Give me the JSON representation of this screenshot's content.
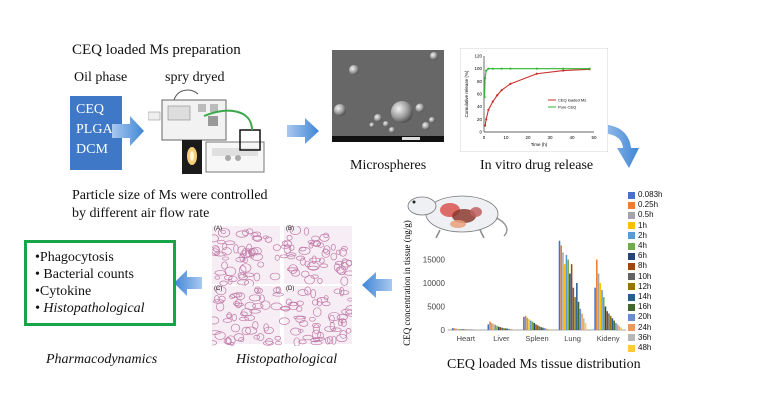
{
  "title": "CEQ loaded Ms preparation",
  "oil_phase_label": "Oil phase",
  "spray_label": "spry dryed",
  "oil_phase_items": [
    "CEQ",
    "PLGA",
    "DCM"
  ],
  "microspheres_label": "Microspheres",
  "in_vitro_label": "In vitro drug release",
  "particle_text_1": "Particle size of Ms were controlled",
  "particle_text_2": "by different air flow rate",
  "pd_items": [
    "•Phagocytosis",
    "• Bacterial counts",
    "•Cytokine",
    "• Histopathological"
  ],
  "pharmacodynamics_label": "Pharmacodynamics",
  "histopathological_label": "Histopathological",
  "tissue_label": "CEQ loaded Ms tissue distribution",
  "histo_panels": [
    "(A)",
    "(B)",
    "(C)",
    "(D)"
  ],
  "release_chart": {
    "type": "line",
    "xlabel": "Time (h)",
    "ylabel": "Cumulative release (%)",
    "xlim": [
      0,
      50
    ],
    "ylim": [
      0,
      120
    ],
    "xticks": [
      "0",
      "10",
      "20",
      "30",
      "40",
      "50"
    ],
    "yticks": [
      "0",
      "20",
      "40",
      "60",
      "80",
      "100",
      "120"
    ],
    "series": [
      {
        "name": "CEQ loaded Ms",
        "color": "#c9302c",
        "x": [
          0.5,
          1,
          2,
          4,
          6,
          8,
          12,
          24,
          36,
          48
        ],
        "y": [
          10,
          20,
          35,
          48,
          58,
          66,
          76,
          92,
          97,
          99
        ]
      },
      {
        "name": "Pure CEQ",
        "color": "#2eb82e",
        "x": [
          0.25,
          0.5,
          1,
          2,
          4,
          8,
          12,
          24,
          36,
          48
        ],
        "y": [
          55,
          85,
          97,
          100,
          100,
          100,
          100,
          100,
          100,
          100
        ]
      }
    ]
  },
  "chart_data": {
    "type": "bar",
    "ylabel": "CEQ concentration in tissue (ng/g)",
    "ylim": [
      0,
      20000
    ],
    "yticks": [
      "0",
      "5000",
      "10000",
      "15000"
    ],
    "categories": [
      "Heart",
      "Liver",
      "Spleen",
      "Lung",
      "Kideny"
    ],
    "legend_position": "right",
    "series": [
      {
        "name": "0.083h",
        "color": "#4472c4",
        "values": [
          400,
          1200,
          2800,
          19000,
          9000
        ]
      },
      {
        "name": "0.25h",
        "color": "#ed7d31",
        "values": [
          350,
          1800,
          3000,
          18000,
          15000
        ]
      },
      {
        "name": "0.5h",
        "color": "#a5a5a5",
        "values": [
          300,
          1500,
          2600,
          16500,
          12000
        ]
      },
      {
        "name": "1h",
        "color": "#ffc000",
        "values": [
          250,
          1300,
          2300,
          14000,
          10000
        ]
      },
      {
        "name": "2h",
        "color": "#5b9bd5",
        "values": [
          200,
          1100,
          2000,
          16000,
          8500
        ]
      },
      {
        "name": "4h",
        "color": "#70ad47",
        "values": [
          180,
          900,
          1800,
          15000,
          7000
        ]
      },
      {
        "name": "6h",
        "color": "#264478",
        "values": [
          150,
          700,
          1500,
          12000,
          5000
        ]
      },
      {
        "name": "8h",
        "color": "#9e480e",
        "values": [
          120,
          600,
          1200,
          14000,
          4000
        ]
      },
      {
        "name": "10h",
        "color": "#636363",
        "values": [
          100,
          500,
          1000,
          9000,
          3500
        ]
      },
      {
        "name": "12h",
        "color": "#997300",
        "values": [
          90,
          400,
          800,
          7000,
          3000
        ]
      },
      {
        "name": "14h",
        "color": "#255e91",
        "values": [
          80,
          350,
          600,
          10000,
          2500
        ]
      },
      {
        "name": "16h",
        "color": "#43682b",
        "values": [
          70,
          300,
          500,
          6000,
          2000
        ]
      },
      {
        "name": "20h",
        "color": "#698ed0",
        "values": [
          60,
          250,
          400,
          4500,
          1500
        ]
      },
      {
        "name": "24h",
        "color": "#f1975a",
        "values": [
          50,
          200,
          300,
          3500,
          1200
        ]
      },
      {
        "name": "36h",
        "color": "#b7b7b7",
        "values": [
          40,
          150,
          200,
          2500,
          800
        ]
      },
      {
        "name": "48h",
        "color": "#ffcd33",
        "values": [
          30,
          100,
          150,
          1500,
          500
        ]
      }
    ]
  }
}
